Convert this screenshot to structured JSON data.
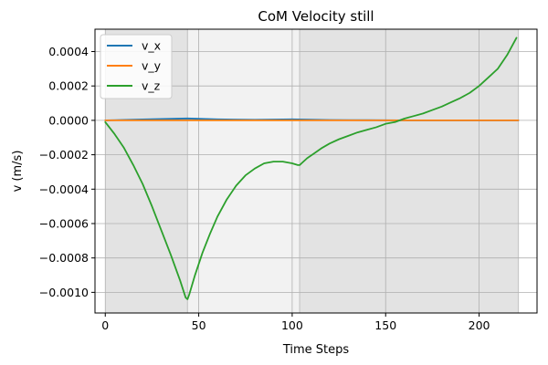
{
  "chart_data": {
    "type": "line",
    "title": "CoM Velocity still",
    "xlabel": "Time Steps",
    "ylabel": "v (m/s)",
    "xlim": [
      -5.5,
      231
    ],
    "ylim": [
      -0.00112,
      0.00053
    ],
    "x_ticks": [
      0,
      50,
      100,
      150,
      200
    ],
    "x_tick_labels": [
      "0",
      "50",
      "100",
      "150",
      "200"
    ],
    "y_ticks": [
      0.0004,
      0.0002,
      0.0,
      -0.0002,
      -0.0004,
      -0.0006,
      -0.0008,
      -0.001
    ],
    "y_tick_labels": [
      "0.0004",
      "0.0002",
      "0.0000",
      "−0.0002",
      "−0.0004",
      "−0.0006",
      "−0.0008",
      "−0.0010"
    ],
    "grid": true,
    "legend_position": "top-left",
    "shaded_regions": [
      {
        "x_start": 0,
        "x_end": 44,
        "color": "#e3e3e3"
      },
      {
        "x_start": 44,
        "x_end": 104,
        "color": "#f2f2f2"
      },
      {
        "x_start": 104,
        "x_end": 221,
        "color": "#e3e3e3"
      }
    ],
    "phase_lines": [
      44,
      104,
      221
    ],
    "series": [
      {
        "name": "v_x",
        "color": "#1f77b4",
        "x": [
          0,
          20,
          44,
          60,
          80,
          100,
          120,
          140,
          160,
          180,
          200,
          221
        ],
        "y": [
          0.0,
          5e-06,
          1.1e-05,
          6e-06,
          3e-06,
          6e-06,
          2e-06,
          1e-06,
          0.0,
          0.0,
          0.0,
          0.0
        ]
      },
      {
        "name": "v_y",
        "color": "#ff7f0e",
        "x": [
          0,
          50,
          100,
          150,
          200,
          221
        ],
        "y": [
          0.0,
          0.0,
          0.0,
          0.0,
          0.0,
          0.0
        ]
      },
      {
        "name": "v_z",
        "color": "#2ca02c",
        "x": [
          0,
          5,
          10,
          15,
          20,
          25,
          30,
          35,
          40,
          43,
          44,
          45,
          48,
          52,
          56,
          60,
          65,
          70,
          75,
          80,
          85,
          90,
          95,
          100,
          103,
          104,
          105,
          108,
          112,
          116,
          120,
          125,
          130,
          135,
          140,
          145,
          150,
          155,
          160,
          165,
          170,
          175,
          180,
          185,
          190,
          195,
          200,
          205,
          210,
          215,
          220
        ],
        "y": [
          -1e-05,
          -8e-05,
          -0.00016,
          -0.00026,
          -0.00037,
          -0.0005,
          -0.00064,
          -0.00078,
          -0.00093,
          -0.00103,
          -0.00104,
          -0.00101,
          -0.0009,
          -0.00077,
          -0.00066,
          -0.00056,
          -0.00046,
          -0.00038,
          -0.00032,
          -0.00028,
          -0.00025,
          -0.00024,
          -0.00024,
          -0.00025,
          -0.00026,
          -0.00026,
          -0.00025,
          -0.00022,
          -0.00019,
          -0.00016,
          -0.000135,
          -0.00011,
          -9e-05,
          -7e-05,
          -5.5e-05,
          -4e-05,
          -2e-05,
          -1e-05,
          1e-05,
          2.5e-05,
          4e-05,
          6e-05,
          8e-05,
          0.000105,
          0.00013,
          0.00016,
          0.0002,
          0.00025,
          0.0003,
          0.00038,
          0.00048
        ]
      }
    ]
  }
}
